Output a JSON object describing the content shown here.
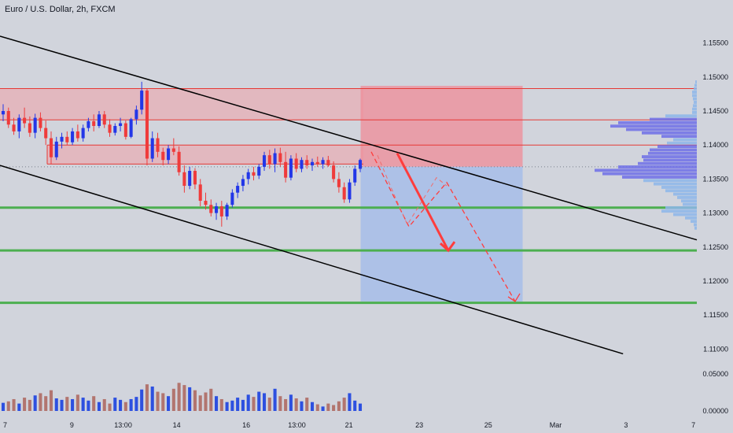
{
  "chart_data": {
    "type": "candlestick",
    "title": "Euro / U.S. Dollar, 2h, FXCM",
    "y_axis": {
      "range": [
        1.1075,
        1.1575
      ],
      "tick_labels": [
        "1.15500",
        "1.15000",
        "1.14500",
        "1.14000",
        "1.13500",
        "1.13000",
        "1.12500",
        "1.12000",
        "1.11500",
        "1.11000"
      ],
      "ticks": [
        1.155,
        1.15,
        1.145,
        1.14,
        1.135,
        1.13,
        1.125,
        1.12,
        1.115,
        1.11
      ]
    },
    "volume_axis": {
      "tick_labels": [
        "0.05000",
        "0.00000"
      ],
      "ticks": [
        0.05,
        0.0
      ]
    },
    "x_axis": {
      "tick_labels": [
        "7",
        "9",
        "13:00",
        "14",
        "16",
        "13:00",
        "21",
        "23",
        "25",
        "Mar",
        "3",
        "7"
      ],
      "tick_x_fraction": [
        0.007,
        0.098,
        0.168,
        0.241,
        0.336,
        0.405,
        0.476,
        0.572,
        0.666,
        0.758,
        0.854,
        0.946
      ]
    },
    "candles": [
      {
        "o": 1.1445,
        "h": 1.146,
        "l": 1.1435,
        "c": 1.145
      },
      {
        "o": 1.145,
        "h": 1.1455,
        "l": 1.1425,
        "c": 1.143
      },
      {
        "o": 1.143,
        "h": 1.144,
        "l": 1.1415,
        "c": 1.142
      },
      {
        "o": 1.142,
        "h": 1.1445,
        "l": 1.141,
        "c": 1.144
      },
      {
        "o": 1.144,
        "h": 1.1455,
        "l": 1.1425,
        "c": 1.1432
      },
      {
        "o": 1.1432,
        "h": 1.1442,
        "l": 1.1412,
        "c": 1.1418
      },
      {
        "o": 1.1418,
        "h": 1.1446,
        "l": 1.141,
        "c": 1.144
      },
      {
        "o": 1.144,
        "h": 1.1448,
        "l": 1.142,
        "c": 1.1425
      },
      {
        "o": 1.1425,
        "h": 1.1436,
        "l": 1.14,
        "c": 1.141
      },
      {
        "o": 1.141,
        "h": 1.142,
        "l": 1.1372,
        "c": 1.1382
      },
      {
        "o": 1.1382,
        "h": 1.1412,
        "l": 1.1378,
        "c": 1.1405
      },
      {
        "o": 1.1405,
        "h": 1.1418,
        "l": 1.1395,
        "c": 1.1412
      },
      {
        "o": 1.1412,
        "h": 1.142,
        "l": 1.14,
        "c": 1.1404
      },
      {
        "o": 1.1404,
        "h": 1.1425,
        "l": 1.14,
        "c": 1.142
      },
      {
        "o": 1.142,
        "h": 1.143,
        "l": 1.1405,
        "c": 1.141
      },
      {
        "o": 1.141,
        "h": 1.143,
        "l": 1.1405,
        "c": 1.1425
      },
      {
        "o": 1.1425,
        "h": 1.144,
        "l": 1.142,
        "c": 1.1435
      },
      {
        "o": 1.1435,
        "h": 1.1445,
        "l": 1.142,
        "c": 1.1428
      },
      {
        "o": 1.1428,
        "h": 1.145,
        "l": 1.1425,
        "c": 1.1445
      },
      {
        "o": 1.1445,
        "h": 1.145,
        "l": 1.1425,
        "c": 1.143
      },
      {
        "o": 1.143,
        "h": 1.1438,
        "l": 1.1412,
        "c": 1.1418
      },
      {
        "o": 1.1418,
        "h": 1.1432,
        "l": 1.1414,
        "c": 1.1428
      },
      {
        "o": 1.1428,
        "h": 1.144,
        "l": 1.142,
        "c": 1.1432
      },
      {
        "o": 1.1432,
        "h": 1.1436,
        "l": 1.1408,
        "c": 1.1412
      },
      {
        "o": 1.1412,
        "h": 1.144,
        "l": 1.141,
        "c": 1.1438
      },
      {
        "o": 1.1438,
        "h": 1.1458,
        "l": 1.143,
        "c": 1.1452
      },
      {
        "o": 1.1452,
        "h": 1.1493,
        "l": 1.1445,
        "c": 1.148
      },
      {
        "o": 1.148,
        "h": 1.1483,
        "l": 1.137,
        "c": 1.138
      },
      {
        "o": 1.138,
        "h": 1.142,
        "l": 1.1375,
        "c": 1.141
      },
      {
        "o": 1.141,
        "h": 1.1418,
        "l": 1.1382,
        "c": 1.139
      },
      {
        "o": 1.139,
        "h": 1.1396,
        "l": 1.137,
        "c": 1.1378
      },
      {
        "o": 1.1378,
        "h": 1.14,
        "l": 1.1372,
        "c": 1.1395
      },
      {
        "o": 1.1395,
        "h": 1.141,
        "l": 1.1385,
        "c": 1.139
      },
      {
        "o": 1.139,
        "h": 1.1398,
        "l": 1.1355,
        "c": 1.136
      },
      {
        "o": 1.136,
        "h": 1.137,
        "l": 1.133,
        "c": 1.134
      },
      {
        "o": 1.134,
        "h": 1.1368,
        "l": 1.1335,
        "c": 1.1362
      },
      {
        "o": 1.1362,
        "h": 1.1366,
        "l": 1.1335,
        "c": 1.1342
      },
      {
        "o": 1.1342,
        "h": 1.135,
        "l": 1.131,
        "c": 1.1318
      },
      {
        "o": 1.1318,
        "h": 1.133,
        "l": 1.1305,
        "c": 1.1312
      },
      {
        "o": 1.1312,
        "h": 1.132,
        "l": 1.1295,
        "c": 1.13
      },
      {
        "o": 1.13,
        "h": 1.1315,
        "l": 1.129,
        "c": 1.131
      },
      {
        "o": 1.131,
        "h": 1.1318,
        "l": 1.128,
        "c": 1.1295
      },
      {
        "o": 1.1295,
        "h": 1.1315,
        "l": 1.129,
        "c": 1.1312
      },
      {
        "o": 1.1312,
        "h": 1.1335,
        "l": 1.1308,
        "c": 1.133
      },
      {
        "o": 1.133,
        "h": 1.1345,
        "l": 1.1322,
        "c": 1.134
      },
      {
        "o": 1.134,
        "h": 1.1356,
        "l": 1.1332,
        "c": 1.135
      },
      {
        "o": 1.135,
        "h": 1.1365,
        "l": 1.1342,
        "c": 1.136
      },
      {
        "o": 1.136,
        "h": 1.1368,
        "l": 1.1348,
        "c": 1.1355
      },
      {
        "o": 1.1355,
        "h": 1.1372,
        "l": 1.135,
        "c": 1.1368
      },
      {
        "o": 1.1368,
        "h": 1.139,
        "l": 1.1362,
        "c": 1.1385
      },
      {
        "o": 1.1385,
        "h": 1.1393,
        "l": 1.1365,
        "c": 1.1372
      },
      {
        "o": 1.1372,
        "h": 1.1395,
        "l": 1.136,
        "c": 1.1388
      },
      {
        "o": 1.1388,
        "h": 1.1396,
        "l": 1.1368,
        "c": 1.1375
      },
      {
        "o": 1.1375,
        "h": 1.139,
        "l": 1.1345,
        "c": 1.1352
      },
      {
        "o": 1.1352,
        "h": 1.1385,
        "l": 1.1348,
        "c": 1.138
      },
      {
        "o": 1.138,
        "h": 1.1388,
        "l": 1.136,
        "c": 1.1365
      },
      {
        "o": 1.1365,
        "h": 1.1382,
        "l": 1.136,
        "c": 1.1378
      },
      {
        "o": 1.1378,
        "h": 1.1385,
        "l": 1.1365,
        "c": 1.137
      },
      {
        "o": 1.137,
        "h": 1.138,
        "l": 1.1362,
        "c": 1.1375
      },
      {
        "o": 1.1375,
        "h": 1.1383,
        "l": 1.1368,
        "c": 1.1372
      },
      {
        "o": 1.1372,
        "h": 1.1382,
        "l": 1.1365,
        "c": 1.1378
      },
      {
        "o": 1.1378,
        "h": 1.1384,
        "l": 1.1368,
        "c": 1.137
      },
      {
        "o": 1.137,
        "h": 1.1376,
        "l": 1.1345,
        "c": 1.135
      },
      {
        "o": 1.135,
        "h": 1.136,
        "l": 1.133,
        "c": 1.1338
      },
      {
        "o": 1.1338,
        "h": 1.1345,
        "l": 1.1315,
        "c": 1.132
      },
      {
        "o": 1.132,
        "h": 1.135,
        "l": 1.1315,
        "c": 1.1345
      },
      {
        "o": 1.1345,
        "h": 1.137,
        "l": 1.134,
        "c": 1.1365
      },
      {
        "o": 1.1365,
        "h": 1.138,
        "l": 1.136,
        "c": 1.1378
      }
    ],
    "volume": [
      0.011,
      0.013,
      0.016,
      0.01,
      0.018,
      0.015,
      0.021,
      0.024,
      0.02,
      0.028,
      0.017,
      0.015,
      0.019,
      0.016,
      0.022,
      0.018,
      0.014,
      0.02,
      0.012,
      0.016,
      0.01,
      0.018,
      0.015,
      0.012,
      0.016,
      0.019,
      0.029,
      0.036,
      0.033,
      0.026,
      0.024,
      0.02,
      0.03,
      0.038,
      0.035,
      0.032,
      0.028,
      0.021,
      0.025,
      0.03,
      0.02,
      0.016,
      0.012,
      0.014,
      0.018,
      0.015,
      0.022,
      0.019,
      0.026,
      0.024,
      0.018,
      0.03,
      0.02,
      0.016,
      0.022,
      0.017,
      0.013,
      0.018,
      0.012,
      0.009,
      0.006,
      0.01,
      0.008,
      0.013,
      0.018,
      0.024,
      0.014,
      0.01
    ],
    "horizontal_levels": {
      "red": [
        1.1483,
        1.1437,
        1.14,
        1.1372
      ],
      "green": [
        1.1308,
        1.1245,
        1.1168
      ],
      "dotted": 1.1368
    },
    "channel_upper": [
      [
        0.0,
        1.156
      ],
      [
        1.0,
        1.1245
      ]
    ],
    "channel_lower": [
      [
        0.0,
        1.137
      ],
      [
        0.85,
        1.1093
      ]
    ],
    "position_tool": {
      "entry": 1.1368,
      "stop": 1.1487,
      "target": 1.117,
      "x_start_fraction": 0.492,
      "x_end_fraction": 0.713
    },
    "colors": {
      "up": "#2337e8",
      "down": "#ef3b3b",
      "volume_up": "#2d50e0",
      "volume_down": "#b2756f",
      "green": "#4caf50",
      "red_line": "#e53935",
      "background": "#d1d4dc",
      "zone_red": "#f0a0a8",
      "zone_blue": "#a9bfe8",
      "arrow": "#ff3d3d"
    },
    "grid": false,
    "legend": "none"
  }
}
